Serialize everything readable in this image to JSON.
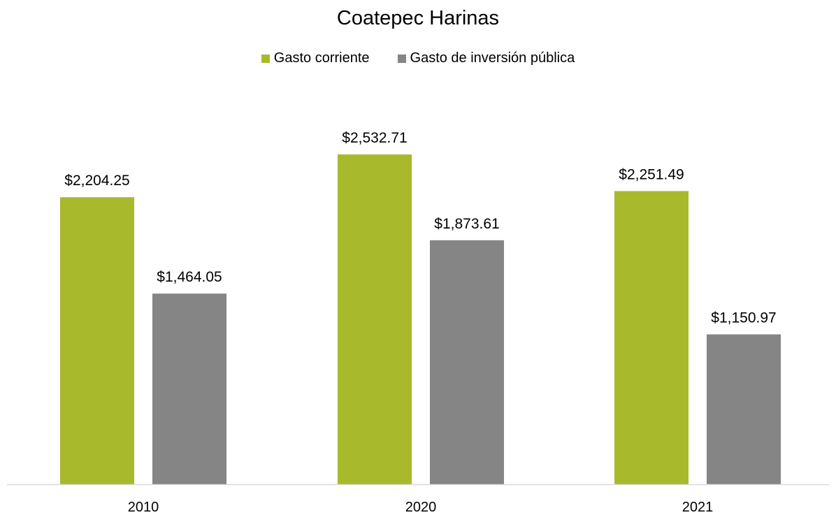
{
  "chart_data": {
    "type": "bar",
    "title": "Coatepec Harinas",
    "categories": [
      "2010",
      "2020",
      "2021"
    ],
    "series": [
      {
        "name": "Gasto corriente",
        "color": "#a8b92b",
        "values": [
          2204.25,
          2532.71,
          2251.49
        ],
        "labels": [
          "$2,204.25",
          "$2,532.71",
          "$2,251.49"
        ]
      },
      {
        "name": "Gasto de inversión pública",
        "color": "#858585",
        "values": [
          1464.05,
          1873.61,
          1150.97
        ],
        "labels": [
          "$1,464.05",
          "$1,873.61",
          "$1,150.97"
        ]
      }
    ],
    "ylim": [
      0,
      2532.71
    ],
    "grid": false,
    "legend_position": "top"
  }
}
